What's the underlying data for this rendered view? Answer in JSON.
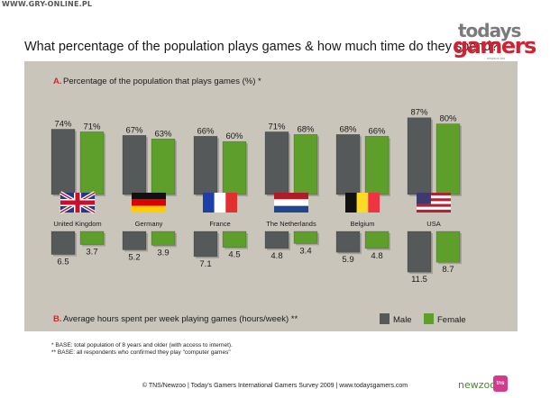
{
  "watermark": "WWW.GRY-ONLINE.PL",
  "title": "What percentage of the population plays games & how much time do they spend?",
  "logo": {
    "line1": "todays",
    "line2": "gamers",
    "small": "newzoo tns"
  },
  "chart_data": {
    "type": "bar",
    "categories": [
      "United Kingdom",
      "Germany",
      "France",
      "The Netherlands",
      "Belgium",
      "USA"
    ],
    "icons": [
      "uk-flag-icon",
      "germany-flag-icon",
      "france-flag-icon",
      "netherlands-flag-icon",
      "belgium-flag-icon",
      "usa-flag-icon"
    ],
    "colors": {
      "male": "#55595a",
      "female": "#5e9f2c"
    },
    "legend": {
      "position": "bottom-right",
      "male": "Male",
      "female": "Female"
    },
    "percent_chart": {
      "letter": "A.",
      "title": "Percentage of the population that plays games (%) *",
      "unit": "%",
      "ylim": [
        0,
        100
      ],
      "series": [
        {
          "name": "Male",
          "values": [
            74,
            67,
            66,
            71,
            68,
            87
          ]
        },
        {
          "name": "Female",
          "values": [
            71,
            63,
            60,
            68,
            66,
            80
          ]
        }
      ]
    },
    "hours_chart": {
      "letter": "B.",
      "title": "Average hours spent per week playing games (hours/week) **",
      "ylim": [
        0,
        12
      ],
      "series": [
        {
          "name": "Male",
          "values": [
            6.5,
            5.2,
            7.1,
            4.8,
            5.9,
            11.5
          ]
        },
        {
          "name": "Female",
          "values": [
            3.7,
            3.9,
            4.5,
            3.4,
            4.8,
            8.7
          ]
        }
      ]
    }
  },
  "footnotes": [
    "* BASE: total population of 8 years and older (with access to internet).",
    "** BASE: all respondents who confirmed they play \"computer games\""
  ],
  "footer": "© TNS/Newzoo | Today's Gamers International Gamers Survey 2009 | www.todaysgamers.com",
  "brand": {
    "newzoo": "newzoo",
    "tns": "tns"
  }
}
